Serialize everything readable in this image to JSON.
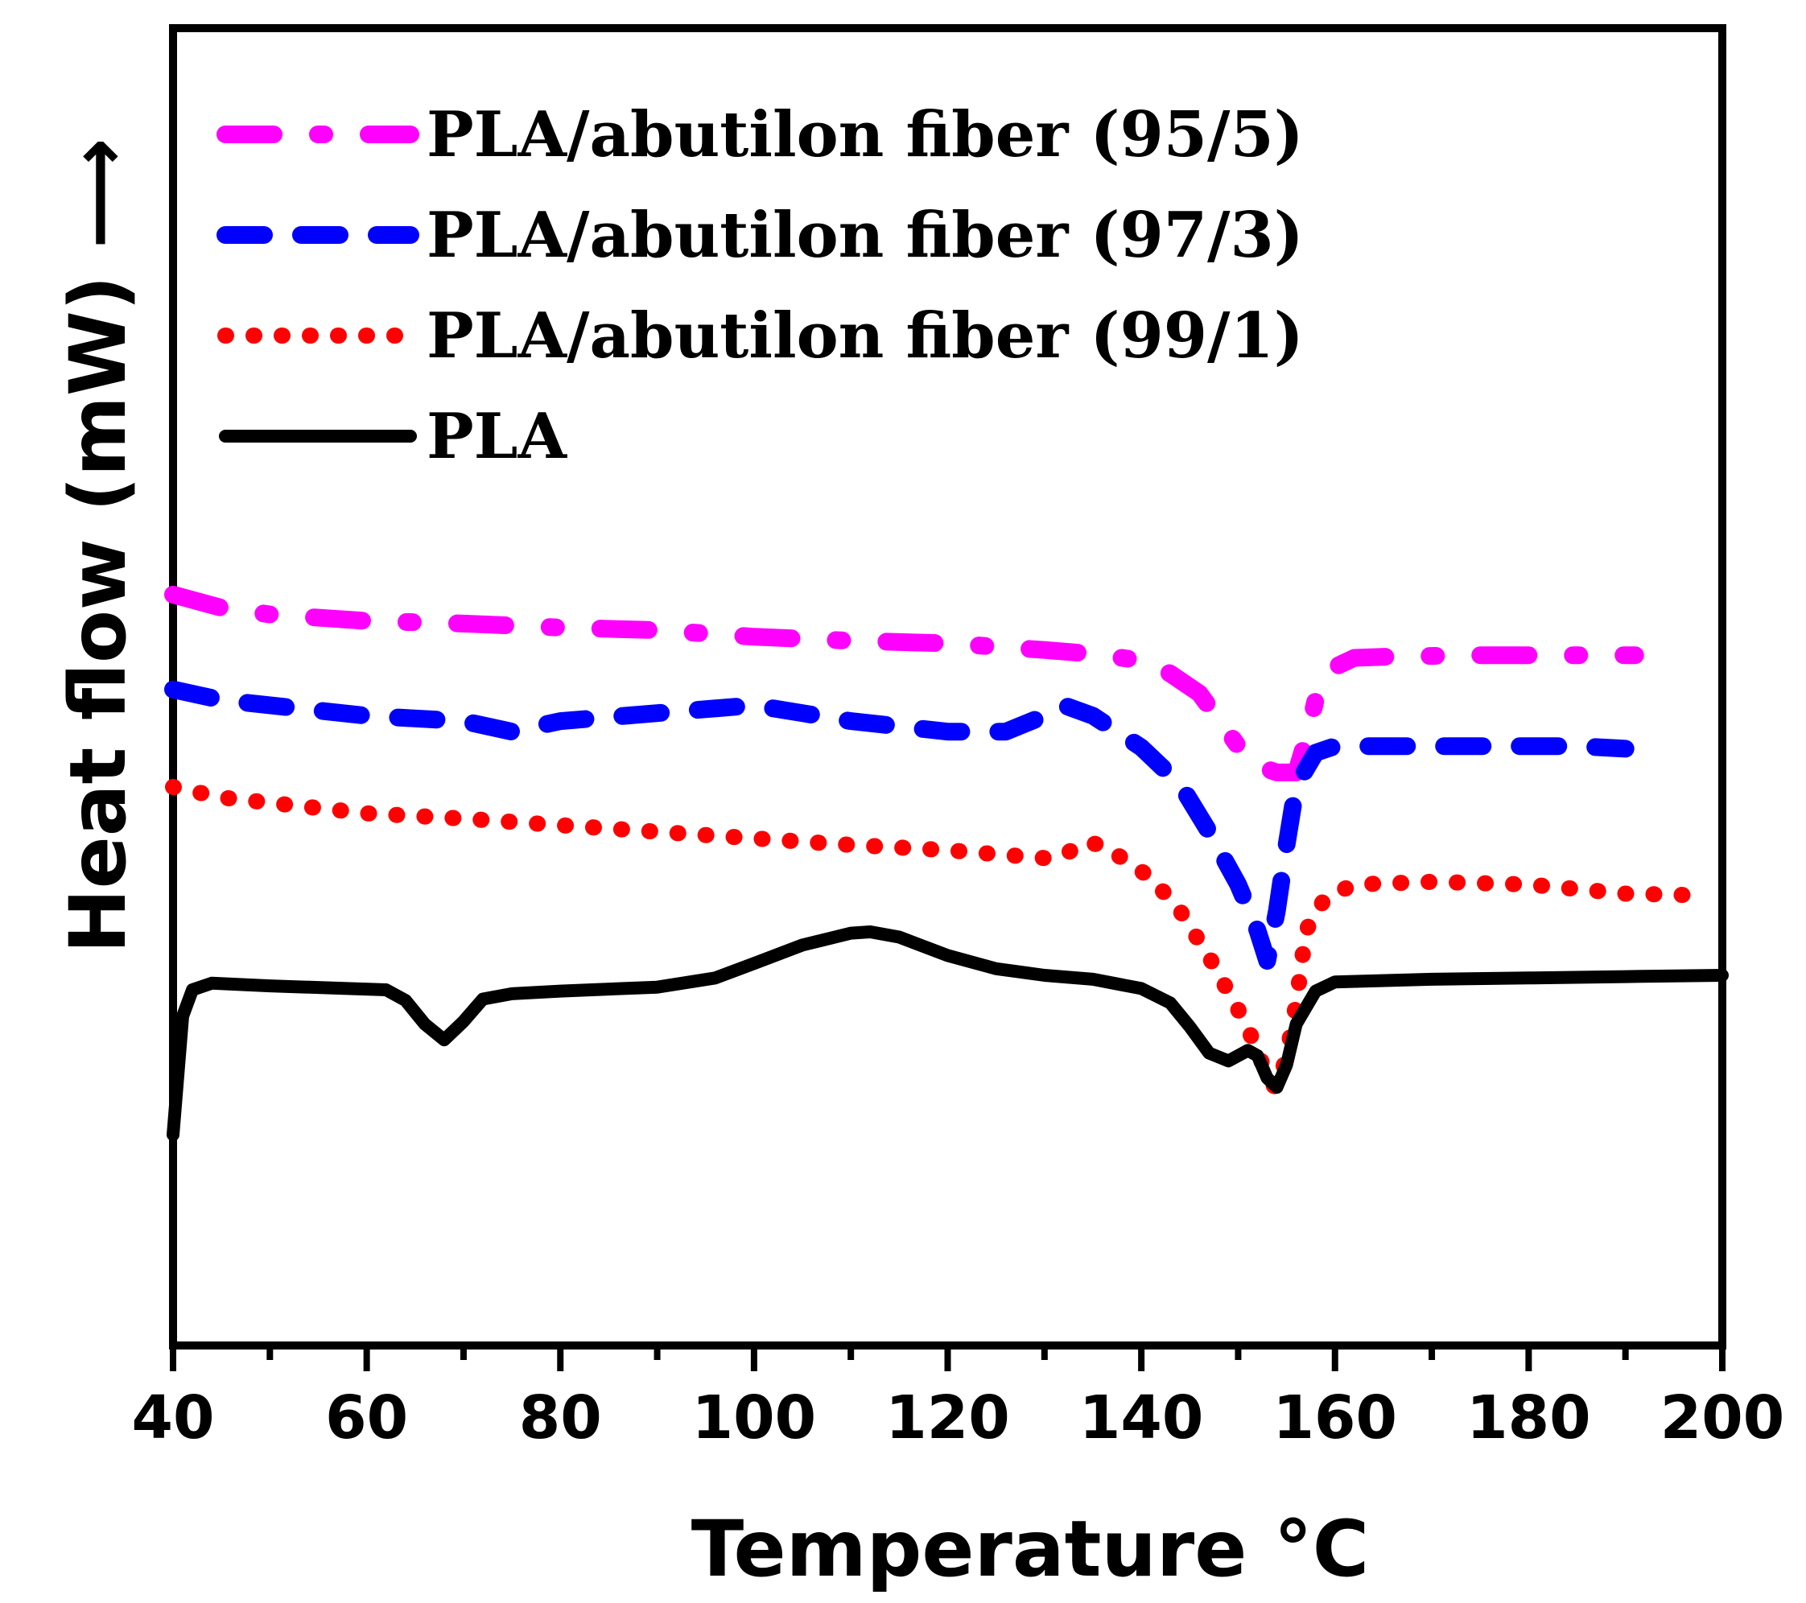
{
  "chart_data": {
    "type": "line",
    "title": "",
    "xlabel": "Temperature °C",
    "ylabel": "Heat flow (mW) ⟶",
    "xlim": [
      40,
      200
    ],
    "ylim": [
      0,
      100
    ],
    "x_ticks": [
      40,
      60,
      80,
      100,
      120,
      140,
      160,
      180,
      200
    ],
    "x_tick_labels": [
      "40",
      "60",
      "80",
      "100",
      "120",
      "140",
      "160",
      "180",
      "200"
    ],
    "x_minor_ticks": [
      50,
      70,
      90,
      110,
      130,
      150,
      170,
      190
    ],
    "y_ticks_shown": false,
    "grid": false,
    "legend_position": "top-left",
    "series": [
      {
        "name": "PLA/abutilon fiber (95/5)",
        "color": "#ff00ff",
        "style": "dash-dot",
        "points": [
          [
            40,
            57.0
          ],
          [
            45,
            56.0
          ],
          [
            50,
            55.5
          ],
          [
            60,
            55.0
          ],
          [
            70,
            54.8
          ],
          [
            80,
            54.5
          ],
          [
            90,
            54.3
          ],
          [
            100,
            53.8
          ],
          [
            110,
            53.5
          ],
          [
            120,
            53.3
          ],
          [
            130,
            52.8
          ],
          [
            135,
            52.5
          ],
          [
            140,
            52.0
          ],
          [
            143,
            51.0
          ],
          [
            146,
            49.5
          ],
          [
            148,
            47.5
          ],
          [
            150,
            45.5
          ],
          [
            152,
            44.0
          ],
          [
            154,
            43.5
          ],
          [
            156,
            43.5
          ],
          [
            157,
            46.0
          ],
          [
            158,
            49.0
          ],
          [
            160,
            51.5
          ],
          [
            162,
            52.2
          ],
          [
            166,
            52.3
          ],
          [
            175,
            52.4
          ],
          [
            185,
            52.4
          ],
          [
            191,
            52.4
          ]
        ]
      },
      {
        "name": "PLA/abutilon fiber (97/3)",
        "color": "#0000ff",
        "style": "dash",
        "points": [
          [
            40,
            49.8
          ],
          [
            45,
            49.0
          ],
          [
            50,
            48.6
          ],
          [
            60,
            47.8
          ],
          [
            70,
            47.4
          ],
          [
            75,
            46.6
          ],
          [
            80,
            47.4
          ],
          [
            90,
            48.0
          ],
          [
            100,
            48.6
          ],
          [
            105,
            48.0
          ],
          [
            110,
            47.4
          ],
          [
            120,
            46.6
          ],
          [
            126,
            46.6
          ],
          [
            130,
            47.8
          ],
          [
            132,
            48.6
          ],
          [
            135,
            47.8
          ],
          [
            140,
            45.4
          ],
          [
            144,
            42.6
          ],
          [
            147,
            39.0
          ],
          [
            150,
            35.0
          ],
          [
            152,
            31.5
          ],
          [
            153,
            29.2
          ],
          [
            154,
            33.0
          ],
          [
            155,
            38.0
          ],
          [
            156,
            42.5
          ],
          [
            158,
            45.0
          ],
          [
            160,
            45.5
          ],
          [
            165,
            45.5
          ],
          [
            175,
            45.5
          ],
          [
            185,
            45.5
          ],
          [
            190,
            45.3
          ]
        ]
      },
      {
        "name": "PLA/abutilon fiber (99/1)",
        "color": "#ff0000",
        "style": "dot",
        "points": [
          [
            40,
            42.4
          ],
          [
            45,
            41.6
          ],
          [
            50,
            41.2
          ],
          [
            60,
            40.4
          ],
          [
            70,
            40.0
          ],
          [
            80,
            39.5
          ],
          [
            90,
            39.0
          ],
          [
            100,
            38.5
          ],
          [
            110,
            38.0
          ],
          [
            120,
            37.6
          ],
          [
            130,
            37.0
          ],
          [
            132,
            37.2
          ],
          [
            134,
            38.2
          ],
          [
            136,
            38.0
          ],
          [
            138,
            37.0
          ],
          [
            141,
            35.5
          ],
          [
            144,
            33.0
          ],
          [
            147,
            29.5
          ],
          [
            150,
            25.5
          ],
          [
            152,
            22.5
          ],
          [
            153,
            20.2
          ],
          [
            154,
            19.5
          ],
          [
            155,
            22.0
          ],
          [
            156,
            26.0
          ],
          [
            157,
            31.5
          ],
          [
            159,
            34.0
          ],
          [
            162,
            35.0
          ],
          [
            170,
            35.2
          ],
          [
            180,
            35.0
          ],
          [
            190,
            34.3
          ],
          [
            196,
            34.2
          ]
        ]
      },
      {
        "name": "PLA",
        "color": "#000000",
        "style": "solid",
        "points": [
          [
            40,
            16.0
          ],
          [
            41,
            25.0
          ],
          [
            42,
            27.0
          ],
          [
            44,
            27.5
          ],
          [
            50,
            27.3
          ],
          [
            58,
            27.1
          ],
          [
            62,
            27.0
          ],
          [
            64,
            26.2
          ],
          [
            66,
            24.4
          ],
          [
            68,
            23.2
          ],
          [
            70,
            24.6
          ],
          [
            72,
            26.3
          ],
          [
            75,
            26.7
          ],
          [
            80,
            26.9
          ],
          [
            90,
            27.2
          ],
          [
            96,
            27.9
          ],
          [
            100,
            29.0
          ],
          [
            105,
            30.4
          ],
          [
            110,
            31.3
          ],
          [
            112,
            31.4
          ],
          [
            115,
            31.0
          ],
          [
            120,
            29.6
          ],
          [
            125,
            28.6
          ],
          [
            130,
            28.1
          ],
          [
            135,
            27.8
          ],
          [
            140,
            27.1
          ],
          [
            143,
            26.0
          ],
          [
            145,
            24.2
          ],
          [
            147,
            22.2
          ],
          [
            149,
            21.6
          ],
          [
            151,
            22.4
          ],
          [
            152,
            22.0
          ],
          [
            153,
            20.3
          ],
          [
            154,
            19.6
          ],
          [
            155,
            21.3
          ],
          [
            156,
            24.4
          ],
          [
            158,
            26.9
          ],
          [
            160,
            27.6
          ],
          [
            170,
            27.8
          ],
          [
            180,
            27.9
          ],
          [
            190,
            28.0
          ],
          [
            200,
            28.1
          ]
        ]
      }
    ]
  }
}
